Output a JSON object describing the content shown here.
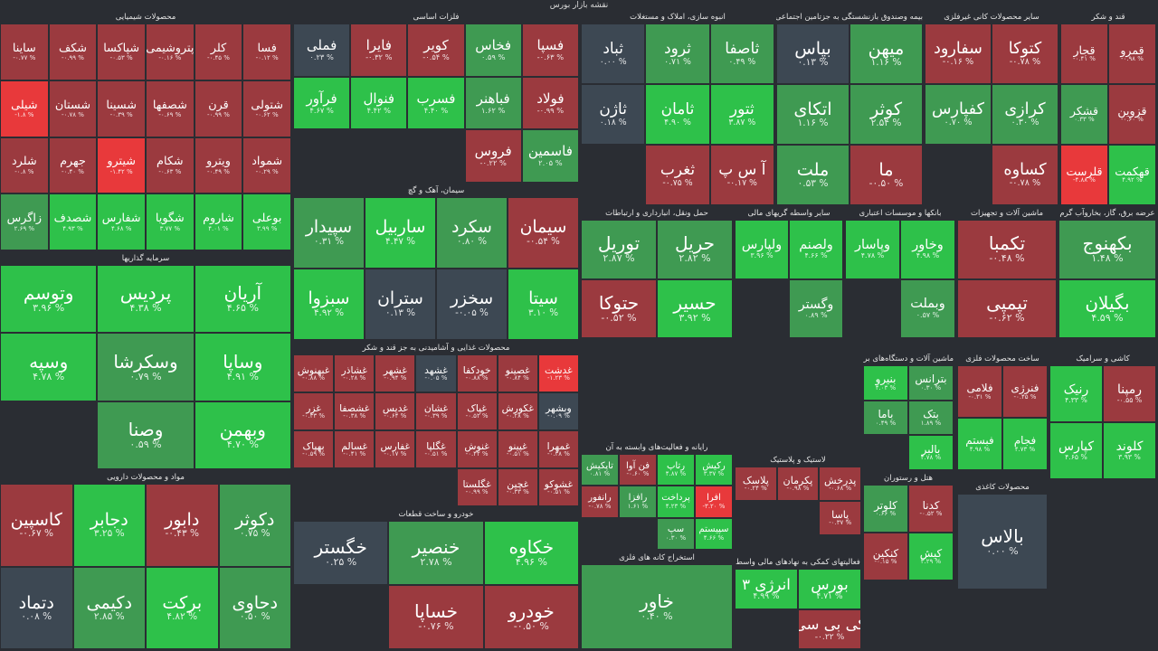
{
  "header": {
    "title": "نقشه بازار بورس"
  },
  "chart_data": {
    "type": "treemap",
    "title": "نقشه بازار بورس",
    "color_scale": {
      "strong_negative": "#e8393b",
      "negative": "#9b3a3f",
      "neutral": "#3d4853",
      "positive": "#3f9a52",
      "strong_positive": "#2ec14a"
    },
    "sectors": [
      {
        "name": "محصولات شیمیایی",
        "tiles": [
          {
            "symbol": "فسا",
            "change": "-۰.۱۲ %"
          },
          {
            "symbol": "کلر",
            "change": "-۰.۴۵ %"
          },
          {
            "symbol": "پتروشیمی",
            "change": "-۰.۱۶ %"
          },
          {
            "symbol": "شپاکسا",
            "change": "-۰.۵۳ %"
          },
          {
            "symbol": "شکف",
            "change": "-۰.۹۹ %"
          },
          {
            "symbol": "ساینا",
            "change": "-۰.۷۷ %"
          },
          {
            "symbol": "شتولی",
            "change": "-۰.۶۲ %"
          },
          {
            "symbol": "قرن",
            "change": "-۰.۹۹ %"
          },
          {
            "symbol": "شصفها",
            "change": "-۰.۶۹ %"
          },
          {
            "symbol": "شسینا",
            "change": "-۰.۳۹ %"
          },
          {
            "symbol": "شستان",
            "change": "-۰.۷۸ %"
          },
          {
            "symbol": "شیلی",
            "change": "-۱.۸ %"
          },
          {
            "symbol": "شمواد",
            "change": "-۰.۲۹ %"
          },
          {
            "symbol": "ویترو",
            "change": "-۰.۴۹ %"
          },
          {
            "symbol": "شکام",
            "change": "-۰.۶۳ %"
          },
          {
            "symbol": "شیترو",
            "change": "-۱.۴۲ %"
          },
          {
            "symbol": "جهرم",
            "change": "-۰.۴۰ %"
          },
          {
            "symbol": "شلرد",
            "change": "-۰.۸ %"
          },
          {
            "symbol": "بوعلی",
            "change": "۳.۹۹ %"
          },
          {
            "symbol": "شاروم",
            "change": "۴.۰۱ %"
          },
          {
            "symbol": "شگویا",
            "change": "۳.۷۷ %"
          },
          {
            "symbol": "شفارس",
            "change": "۴.۶۸ %"
          },
          {
            "symbol": "شصدف",
            "change": "۴.۹۳ %"
          },
          {
            "symbol": "زاگرس",
            "change": "۲.۶۹ %"
          }
        ]
      },
      {
        "name": "فلزات اساسی",
        "tiles": [
          {
            "symbol": "فسپا",
            "change": "-۰.۶۳ %"
          },
          {
            "symbol": "فخاس",
            "change": "۰.۵۹ %"
          },
          {
            "symbol": "کویر",
            "change": "-۰.۵۴ %"
          },
          {
            "symbol": "فایرا",
            "change": "-۰.۳۲ %"
          },
          {
            "symbol": "فملی",
            "change": "۰.۲۳ %"
          },
          {
            "symbol": "فولاد",
            "change": "-۰.۹۹ %"
          },
          {
            "symbol": "فباهنر",
            "change": "۱.۶۲ %"
          },
          {
            "symbol": "فسرب",
            "change": "۴.۴۰ %"
          },
          {
            "symbol": "فنوال",
            "change": "۴.۴۲ %"
          },
          {
            "symbol": "فرآور",
            "change": "۴.۶۷ %"
          },
          {
            "symbol": "فاسمین",
            "change": "۲.۰۵ %"
          },
          {
            "symbol": "فروس",
            "change": "-۰.۲۲ %"
          }
        ]
      },
      {
        "name": "انبوه سازی، املاک و مستغلات",
        "tiles": [
          {
            "symbol": "ثاصفا",
            "change": "۰.۴۹ %"
          },
          {
            "symbol": "ثرود",
            "change": "۰.۷۱ %"
          },
          {
            "symbol": "ثباد",
            "change": "۰.۰۰ %"
          },
          {
            "symbol": "ثتور",
            "change": "۳.۸۷ %"
          },
          {
            "symbol": "ثامان",
            "change": "۴.۹۰ %"
          },
          {
            "symbol": "ثاژن",
            "change": "۰.۱۸ %"
          },
          {
            "symbol": "آ س پ",
            "change": "-۰.۱۷ %"
          },
          {
            "symbol": "ثغرب",
            "change": "-۰.۷۵ %"
          }
        ]
      },
      {
        "name": "بیمه وصندوق بازنشستگی به جزتامین اجتماعی",
        "tiles": [
          {
            "symbol": "میهن",
            "change": "۱.۱۶ %"
          },
          {
            "symbol": "بپاس",
            "change": "۰.۱۳ %"
          },
          {
            "symbol": "کوثر",
            "change": "۲.۵۴ %"
          },
          {
            "symbol": "اتکای",
            "change": "۱.۱۶ %"
          },
          {
            "symbol": "ما",
            "change": "-۰.۵۰ %"
          },
          {
            "symbol": "ملت",
            "change": "۰.۵۳ %"
          }
        ]
      },
      {
        "name": "سایر محصولات کانی غیرفلزی",
        "tiles": [
          {
            "symbol": "کتوکا",
            "change": "-۰.۷۸ %"
          },
          {
            "symbol": "سفارود",
            "change": "-۰.۱۶ %"
          },
          {
            "symbol": "کرازی",
            "change": "۰.۳۰ %"
          },
          {
            "symbol": "کفپارس",
            "change": "۰.۷۰ %"
          },
          {
            "symbol": "کساوه",
            "change": "-۰.۷۸ %"
          }
        ]
      },
      {
        "name": "قند و شکر",
        "tiles": [
          {
            "symbol": "قمرو",
            "change": "-۰.۹۸ %"
          },
          {
            "symbol": "قجار",
            "change": "-۰.۴۱ %"
          },
          {
            "symbol": "قزوین",
            "change": "-۰.۶۰ %"
          },
          {
            "symbol": "قشکر",
            "change": "۰.۳۳ %"
          },
          {
            "symbol": "قهکمت",
            "change": "۴.۹۲ %"
          },
          {
            "symbol": "قلرست",
            "change": "-۴.۸۸ %"
          }
        ]
      },
      {
        "name": "سیمان، آهک و گچ",
        "tiles": [
          {
            "symbol": "سیمان",
            "change": "-۰.۵۴ %"
          },
          {
            "symbol": "سکرد",
            "change": "۰.۸۰ %"
          },
          {
            "symbol": "ساربیل",
            "change": "۴.۴۷ %"
          },
          {
            "symbol": "سپیدار",
            "change": "۰.۳۱ %"
          },
          {
            "symbol": "سیتا",
            "change": "۳.۱۰ %"
          },
          {
            "symbol": "سخزر",
            "change": "-۰.۰۵ %"
          },
          {
            "symbol": "ستران",
            "change": "۰.۱۳ %"
          },
          {
            "symbol": "سبزوا",
            "change": "۴.۹۲ %"
          }
        ]
      },
      {
        "name": "حمل ونقل، انبارداری و ارتباطات",
        "tiles": [
          {
            "symbol": "حریل",
            "change": "۲.۸۲ %"
          },
          {
            "symbol": "توریل",
            "change": "۲.۸۷ %"
          },
          {
            "symbol": "حسیر",
            "change": "۳.۹۲ %"
          },
          {
            "symbol": "حتوکا",
            "change": "-۰.۵۲ %"
          }
        ]
      },
      {
        "name": "سایر واسطه گریهای مالی",
        "tiles": [
          {
            "symbol": "ولصنم",
            "change": "۴.۶۶ %"
          },
          {
            "symbol": "ولپارس",
            "change": "۳.۹۶ %"
          },
          {
            "symbol": "وگستر",
            "change": "۰.۸۹ %"
          }
        ]
      },
      {
        "name": "بانکها و موسسات اعتباری",
        "tiles": [
          {
            "symbol": "وخاور",
            "change": "۴.۹۸ %"
          },
          {
            "symbol": "وپاسار",
            "change": "۴.۷۸ %"
          },
          {
            "symbol": "وبملت",
            "change": "۰.۵۷ %"
          }
        ]
      },
      {
        "name": "ماشین آلات و تجهیزات",
        "tiles": [
          {
            "symbol": "تکمبا",
            "change": "-۰.۴۸ %"
          },
          {
            "symbol": "تپمپی",
            "change": "-۰.۶۲ %"
          }
        ]
      },
      {
        "name": "عرضه برق، گاز، بخاروآب گرم",
        "tiles": [
          {
            "symbol": "بکهنوج",
            "change": "۱.۴۸ %"
          },
          {
            "symbol": "بگیلان",
            "change": "۴.۵۹ %"
          }
        ]
      },
      {
        "name": "سرمایه گذاریها",
        "tiles": [
          {
            "symbol": "آریان",
            "change": "۴.۶۵ %"
          },
          {
            "symbol": "پردیس",
            "change": "۴.۳۸ %"
          },
          {
            "symbol": "وتوسم",
            "change": "۳.۹۶ %"
          },
          {
            "symbol": "وساپا",
            "change": "۴.۹۱ %"
          },
          {
            "symbol": "وسکرشا",
            "change": "۰.۷۹ %"
          },
          {
            "symbol": "وسپه",
            "change": "۴.۷۸ %"
          },
          {
            "symbol": "وبهمن",
            "change": "۴.۷۰ %"
          },
          {
            "symbol": "وصنا",
            "change": "۰.۵۹ %"
          }
        ]
      },
      {
        "name": "محصولات غذایی و آشامیدنی به جز قند و شکر",
        "tiles": [
          {
            "symbol": "غدشت",
            "change": "-۱.۲۳ %"
          },
          {
            "symbol": "غصینو",
            "change": "-۰.۸۴ %"
          },
          {
            "symbol": "خودکفا",
            "change": "-۰.۸۸ %"
          },
          {
            "symbol": "غشهد",
            "change": "-۰.۰۵ %"
          },
          {
            "symbol": "غشهر",
            "change": "-۰.۹۴ %"
          },
          {
            "symbol": "غشاذر",
            "change": "-۰.۲۸ %"
          },
          {
            "symbol": "غبهنوش",
            "change": "-۰.۸۸ %"
          },
          {
            "symbol": "وبشهر",
            "change": "-۰.۰۹ %"
          },
          {
            "symbol": "غکورش",
            "change": "-۰.۲۸ %"
          },
          {
            "symbol": "غپاک",
            "change": "-۰.۵۲ %"
          },
          {
            "symbol": "غشان",
            "change": "-۰.۳۹ %"
          },
          {
            "symbol": "غدیس",
            "change": "-۰.۶۴ %"
          },
          {
            "symbol": "غشصفا",
            "change": "-۰.۳۸ %"
          },
          {
            "symbol": "غزر",
            "change": "-۰.۳۳ %"
          },
          {
            "symbol": "غمهرا",
            "change": "-۰.۳۸ %"
          },
          {
            "symbol": "غپینو",
            "change": "-۰.۵۱ %"
          },
          {
            "symbol": "غنوش",
            "change": "-۰.۴۲ %"
          },
          {
            "symbol": "غگلپا",
            "change": "-۰.۵۱ %"
          },
          {
            "symbol": "غفارس",
            "change": "-۰.۱۷ %"
          },
          {
            "symbol": "غسالم",
            "change": "-۰.۴۱ %"
          },
          {
            "symbol": "بهپاک",
            "change": "-۰.۵۹ %"
          },
          {
            "symbol": "غشوکو",
            "change": "-۰.۵۱ %"
          },
          {
            "symbol": "غچین",
            "change": "-۰.۳۳ %"
          },
          {
            "symbol": "غگلستا",
            "change": "-۰.۹۹ %"
          }
        ]
      },
      {
        "name": "خودرو و ساخت قطعات",
        "tiles": [
          {
            "symbol": "خکاوه",
            "change": "۴.۹۶ %"
          },
          {
            "symbol": "خنصیر",
            "change": "۲.۷۸ %"
          },
          {
            "symbol": "خگستر",
            "change": "۰.۲۵ %"
          },
          {
            "symbol": "خودرو",
            "change": "-۰.۵۰ %"
          },
          {
            "symbol": "خساپا",
            "change": "-۰.۷۶ %"
          }
        ]
      },
      {
        "name": "رایانه و فعالیت‌های وابسته به آن",
        "tiles": [
          {
            "symbol": "رکیش",
            "change": "۳.۳۷ %"
          },
          {
            "symbol": "رتاپ",
            "change": "۴.۸۷ %"
          },
          {
            "symbol": "فن آوا",
            "change": "-۰.۶۰ %"
          },
          {
            "symbol": "تاپکیش",
            "change": "۰.۸۱ %"
          },
          {
            "symbol": "افرا",
            "change": "-۳.۲۰ %"
          },
          {
            "symbol": "پرداخت",
            "change": "۴.۲۳ %"
          },
          {
            "symbol": "رافزا",
            "change": "۱.۶۱ %"
          },
          {
            "symbol": "رانفور",
            "change": "-۰.۷۸ %"
          },
          {
            "symbol": "سپیستم",
            "change": "۴.۶۶ %"
          },
          {
            "symbol": "سپ",
            "change": "۰.۳۰ %"
          }
        ]
      },
      {
        "name": "لاستیک و پلاستیک",
        "tiles": [
          {
            "symbol": "پدرخش",
            "change": "-۰.۶۸ %"
          },
          {
            "symbol": "پکرمان",
            "change": "-۰.۹۸ %"
          },
          {
            "symbol": "پلاسک",
            "change": "-۰.۲۴ %"
          },
          {
            "symbol": "پاسا",
            "change": "-۰.۳۷ %"
          }
        ]
      },
      {
        "name": "ماشین آلات و دستگاه‌های برقی",
        "tiles": [
          {
            "symbol": "بترانس",
            "change": "۰.۳۰ %"
          },
          {
            "symbol": "بنیرو",
            "change": "۴.۰۳ %"
          },
          {
            "symbol": "بتک",
            "change": "۱.۸۹ %"
          },
          {
            "symbol": "باما",
            "change": "۰.۴۹ %"
          },
          {
            "symbol": "بالبر",
            "change": "۴.۷۸ %"
          }
        ]
      },
      {
        "name": "ساخت محصولات فلزی",
        "tiles": [
          {
            "symbol": "فنرژی",
            "change": "-۰.۴۵ %"
          },
          {
            "symbol": "فلامی",
            "change": "-۰.۳۱ %"
          },
          {
            "symbol": "فجام",
            "change": "۴.۷۳ %"
          },
          {
            "symbol": "فبستم",
            "change": "۴.۹۸ %"
          }
        ]
      },
      {
        "name": "کاشی و سرامیک",
        "tiles": [
          {
            "symbol": "رمپنا",
            "change": "-۰.۵۵ %"
          },
          {
            "symbol": "رنیک",
            "change": "۴.۳۳ %"
          },
          {
            "symbol": "کلوند",
            "change": "۳.۹۳ %"
          },
          {
            "symbol": "کپارس",
            "change": "۴.۶۵ %"
          }
        ]
      },
      {
        "name": "مواد و محصولات دارویی",
        "tiles": [
          {
            "symbol": "دکوثر",
            "change": "۰.۷۵ %"
          },
          {
            "symbol": "دابور",
            "change": "-۰.۴۳ %"
          },
          {
            "symbol": "دجابر",
            "change": "۳.۲۵ %"
          },
          {
            "symbol": "کاسپین",
            "change": "-۰.۶۷ %"
          },
          {
            "symbol": "دحاوی",
            "change": "۰.۵۰ %"
          },
          {
            "symbol": "برکت",
            "change": "۴.۸۲ %"
          },
          {
            "symbol": "دکیمی",
            "change": "۲.۸۵ %"
          },
          {
            "symbol": "دتماد",
            "change": "۰.۰۸ %"
          }
        ]
      },
      {
        "name": "استخراج کانه های فلزی",
        "tiles": [
          {
            "symbol": "خاور",
            "change": "۰.۴۰ %"
          }
        ]
      },
      {
        "name": "فعالیتهای کمکی به نهادهای مالی واسط",
        "tiles": [
          {
            "symbol": "بورس",
            "change": "۴.۷۱ %"
          },
          {
            "symbol": "انرژی ۳",
            "change": "۴.۹۹ %"
          },
          {
            "symbol": "کی بی سی",
            "change": "-۰.۲۲ %"
          }
        ]
      },
      {
        "name": "هتل و رستوران",
        "tiles": [
          {
            "symbol": "کدنا",
            "change": "-۰.۵۲ %"
          },
          {
            "symbol": "کلوتر",
            "change": "۰.۶۶ %"
          },
          {
            "symbol": "کیش",
            "change": "۳.۲۹ %"
          },
          {
            "symbol": "کنکین",
            "change": "-۰.۱۵ %"
          }
        ]
      },
      {
        "name": "محصولات کاغذی",
        "tiles": [
          {
            "symbol": "بالاس",
            "change": "۰.۰۰ %"
          }
        ]
      }
    ]
  }
}
